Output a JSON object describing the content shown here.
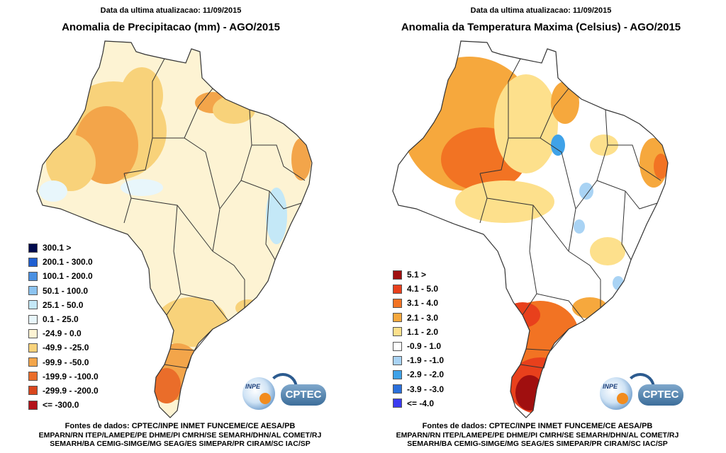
{
  "update_label": "Data da ultima atualizacao: 11/09/2015",
  "left": {
    "title": "Anomalia de Precipitacao (mm) - AGO/2015",
    "legend": [
      {
        "label": "300.1 >",
        "color": "#000a4d"
      },
      {
        "label": "200.1 - 300.0",
        "color": "#1f5fd1"
      },
      {
        "label": "100.1 - 200.0",
        "color": "#4a90e2"
      },
      {
        "label": "50.1 - 100.0",
        "color": "#8cc3f0"
      },
      {
        "label": "25.1 - 50.0",
        "color": "#c4e8f7"
      },
      {
        "label": "0.1 - 25.0",
        "color": "#e8f6fb"
      },
      {
        "label": "-24.9 - 0.0",
        "color": "#fdf3d3"
      },
      {
        "label": "-49.9 - -25.0",
        "color": "#f8d27a"
      },
      {
        "label": "-99.9 - -50.0",
        "color": "#f3a54a"
      },
      {
        "label": "-199.9 - -100.0",
        "color": "#ea6d2a"
      },
      {
        "label": "-299.9 - -200.0",
        "color": "#d9461d"
      },
      {
        "label": "<= -300.0",
        "color": "#b3121a"
      }
    ]
  },
  "right": {
    "title": "Anomalia da Temperatura Maxima (Celsius) - AGO/2015",
    "legend": [
      {
        "label": "5.1 >",
        "color": "#a00f0f"
      },
      {
        "label": "4.1 - 5.0",
        "color": "#e8401c"
      },
      {
        "label": "3.1 - 4.0",
        "color": "#f27323"
      },
      {
        "label": "2.1 - 3.0",
        "color": "#f6a83d"
      },
      {
        "label": "1.1 - 2.0",
        "color": "#fde08c"
      },
      {
        "label": "-0.9 - 1.0",
        "color": "#ffffff"
      },
      {
        "label": "-1.9 - -1.0",
        "color": "#a9d3f4"
      },
      {
        "label": "-2.9 - -2.0",
        "color": "#3fa2e8"
      },
      {
        "label": "-3.9 - -3.0",
        "color": "#2a6fdb"
      },
      {
        "label": "<= -4.0",
        "color": "#3a3af0"
      }
    ]
  },
  "logos": {
    "inpe": "INPE",
    "cptec": "CPTEC"
  },
  "sources": {
    "title": "Fontes de dados: CPTEC/INPE INMET FUNCEME/CE AESA/PB",
    "line2": "EMPARN/RN ITEP/LAMEPE/PE DHME/PI CMRH/SE SEMARH/DHN/AL COMET/RJ",
    "line3": "SEMARH/BA CEMIG-SIMGE/MG SEAG/ES SIMEPAR/PR CIRAM/SC IAC/SP"
  },
  "map_colors": {
    "base_left": "#fdf3d3",
    "base_right": "#ffffff",
    "border": "#333333"
  }
}
